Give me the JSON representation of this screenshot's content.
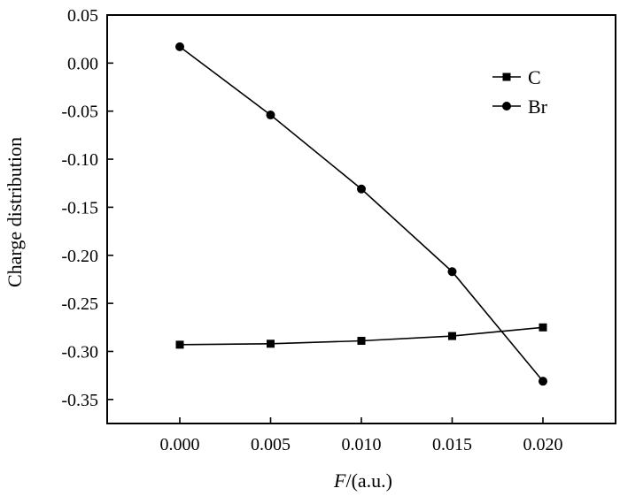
{
  "chart_data": {
    "type": "line",
    "xlabel_italic": "F",
    "xlabel_rest": "/(a.u.)",
    "ylabel": "Charge distribution",
    "xlim": [
      -0.004,
      0.024
    ],
    "ylim": [
      -0.375,
      0.05
    ],
    "x_ticks": [
      0.0,
      0.005,
      0.01,
      0.015,
      0.02
    ],
    "x_tick_labels": [
      "0.000",
      "0.005",
      "0.010",
      "0.015",
      "0.020"
    ],
    "y_ticks": [
      0.05,
      0.0,
      -0.05,
      -0.1,
      -0.15,
      -0.2,
      -0.25,
      -0.3,
      -0.35
    ],
    "y_tick_labels": [
      "0.05",
      "0.00",
      "-0.05",
      "-0.10",
      "-0.15",
      "-0.20",
      "-0.25",
      "-0.30",
      "-0.35"
    ],
    "legend_position": "top-right",
    "series": [
      {
        "name": "C",
        "marker": "square",
        "color": "#000000",
        "x": [
          0.0,
          0.005,
          0.01,
          0.015,
          0.02
        ],
        "y": [
          -0.293,
          -0.292,
          -0.289,
          -0.284,
          -0.275
        ]
      },
      {
        "name": "Br",
        "marker": "circle",
        "color": "#000000",
        "x": [
          0.0,
          0.005,
          0.01,
          0.015,
          0.02
        ],
        "y": [
          0.017,
          -0.054,
          -0.131,
          -0.217,
          -0.331
        ]
      }
    ]
  }
}
